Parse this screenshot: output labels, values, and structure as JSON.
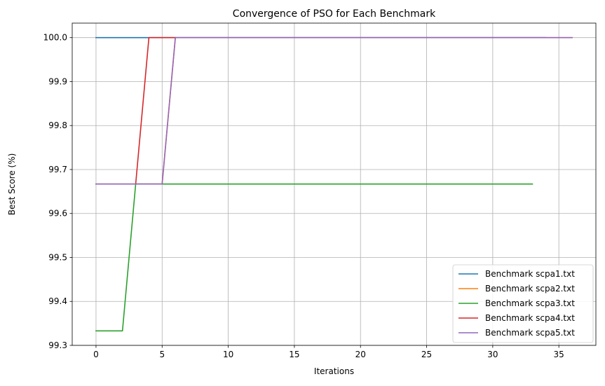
{
  "chart_data": {
    "type": "line",
    "title": "Convergence of PSO for Each Benchmark",
    "xlabel": "Iterations",
    "ylabel": "Best Score (%)",
    "xlim": [
      -1.8,
      37.8
    ],
    "ylim": [
      99.3,
      100.033
    ],
    "xticks": [
      0,
      5,
      10,
      15,
      20,
      25,
      30,
      35
    ],
    "yticks": [
      99.3,
      99.4,
      99.5,
      99.6,
      99.7,
      99.8,
      99.9,
      100.0
    ],
    "ytick_labels": [
      "99.3",
      "99.4",
      "99.5",
      "99.6",
      "99.7",
      "99.8",
      "99.9",
      "100.0"
    ],
    "grid": true,
    "legend_position": "lower-right",
    "series": [
      {
        "name": "Benchmark scpa1.txt",
        "color": "#1f77b4",
        "x": [
          0,
          34
        ],
        "y": [
          100.0,
          100.0
        ]
      },
      {
        "name": "Benchmark scpa2.txt",
        "color": "#ff7f0e",
        "x": [
          0,
          5,
          6,
          36
        ],
        "y": [
          99.667,
          99.667,
          100.0,
          100.0
        ]
      },
      {
        "name": "Benchmark scpa3.txt",
        "color": "#2ca02c",
        "x": [
          0,
          2,
          3,
          33
        ],
        "y": [
          99.333,
          99.333,
          99.667,
          99.667
        ]
      },
      {
        "name": "Benchmark scpa4.txt",
        "color": "#d62728",
        "x": [
          3,
          4,
          6
        ],
        "y": [
          99.667,
          100.0,
          100.0
        ]
      },
      {
        "name": "Benchmark scpa5.txt",
        "color": "#9467bd",
        "x": [
          0,
          5,
          6,
          36
        ],
        "y": [
          99.667,
          99.667,
          100.0,
          100.0
        ]
      }
    ]
  }
}
